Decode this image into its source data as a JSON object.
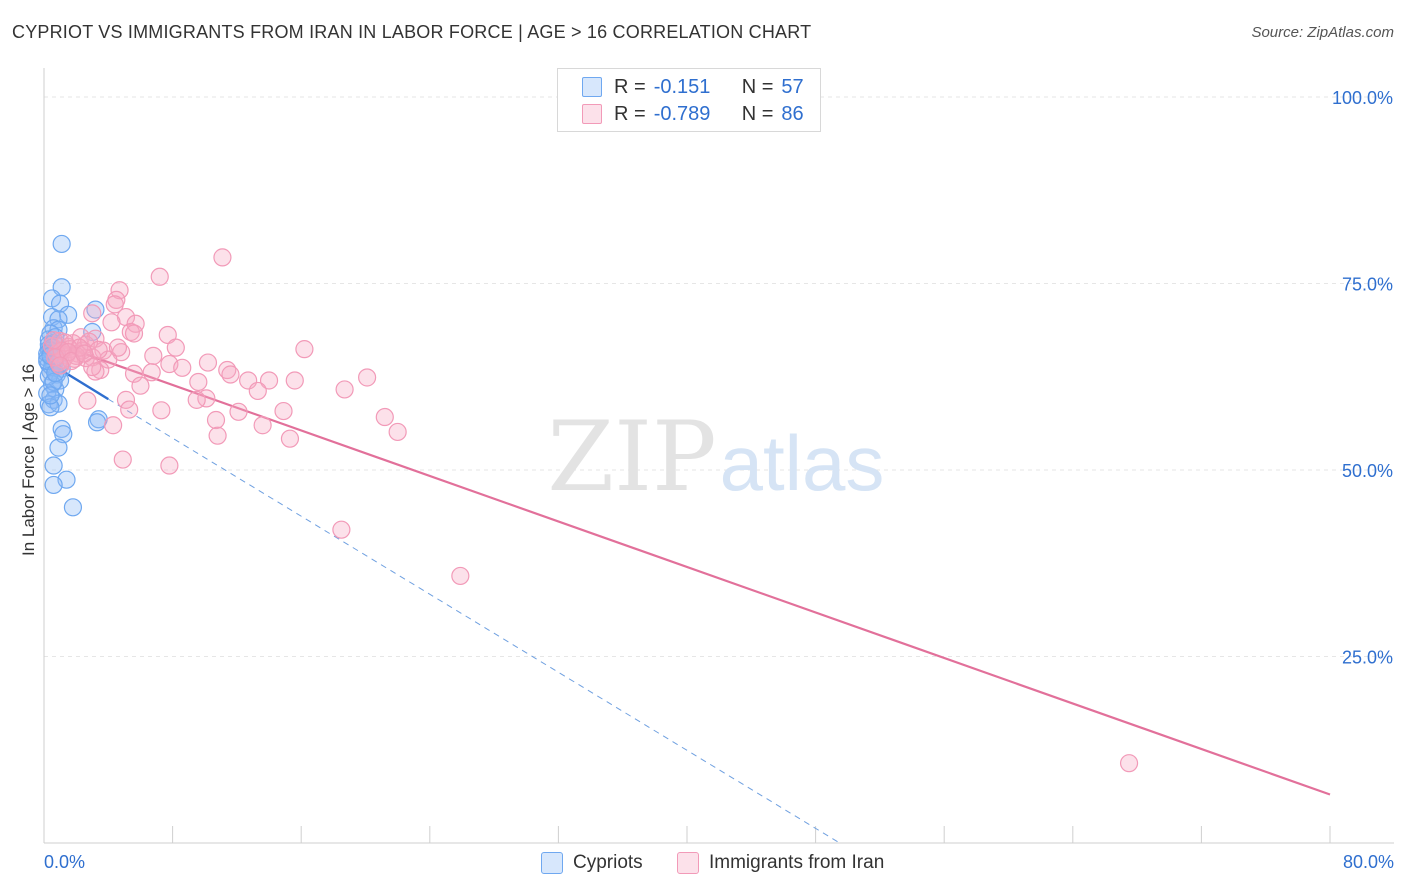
{
  "title": "CYPRIOT VS IMMIGRANTS FROM IRAN IN LABOR FORCE | AGE > 16 CORRELATION CHART",
  "source": "Source: ZipAtlas.com",
  "watermark": {
    "zip": "ZIP",
    "atlas": "atlas"
  },
  "legend": {
    "rows": [
      {
        "r_label": "R =",
        "r_value": "-0.151",
        "n_label": "N =",
        "n_value": "57",
        "color": "#6fa8f0"
      },
      {
        "r_label": "R =",
        "r_value": "-0.789",
        "n_label": "N =",
        "n_value": "86",
        "color": "#f29ab8"
      }
    ]
  },
  "bottom_legend": [
    "Cypriots",
    "Immigrants from Iran"
  ],
  "chart_data": {
    "type": "scatter",
    "xlabel": "",
    "ylabel": "In Labor Force | Age > 16",
    "xlim": [
      0,
      80
    ],
    "ylim": [
      0,
      100
    ],
    "x_tick_labels": [
      "0.0%",
      "80.0%"
    ],
    "y_tick_labels": [
      "100.0%",
      "75.0%",
      "50.0%",
      "25.0%"
    ],
    "y_ticks": [
      100,
      75,
      50,
      25
    ],
    "grid": true,
    "series": [
      {
        "name": "Cypriots",
        "color": "#6fa8f0",
        "points": [
          [
            1.1,
            80.3
          ],
          [
            1.1,
            74.5
          ],
          [
            0.5,
            73.0
          ],
          [
            1.0,
            72.3
          ],
          [
            0.5,
            70.5
          ],
          [
            1.5,
            70.8
          ],
          [
            0.9,
            70.2
          ],
          [
            0.6,
            69.0
          ],
          [
            0.9,
            68.8
          ],
          [
            0.4,
            68.3
          ],
          [
            0.3,
            67.5
          ],
          [
            0.6,
            67.0
          ],
          [
            0.8,
            66.6
          ],
          [
            0.3,
            66.2
          ],
          [
            0.5,
            65.8
          ],
          [
            0.7,
            65.5
          ],
          [
            0.2,
            65.0
          ],
          [
            0.5,
            64.8
          ],
          [
            0.9,
            64.6
          ],
          [
            0.3,
            64.2
          ],
          [
            0.6,
            64.0
          ],
          [
            1.1,
            63.6
          ],
          [
            0.4,
            63.2
          ],
          [
            0.8,
            62.8
          ],
          [
            1.0,
            62.0
          ],
          [
            0.5,
            61.5
          ],
          [
            0.7,
            60.8
          ],
          [
            0.2,
            60.3
          ],
          [
            0.6,
            59.4
          ],
          [
            0.3,
            58.8
          ],
          [
            0.9,
            58.9
          ],
          [
            0.4,
            58.4
          ],
          [
            3.2,
            71.5
          ],
          [
            3.0,
            68.5
          ],
          [
            3.4,
            56.8
          ],
          [
            3.3,
            56.4
          ],
          [
            1.1,
            55.5
          ],
          [
            1.2,
            54.8
          ],
          [
            0.9,
            53.0
          ],
          [
            0.6,
            50.6
          ],
          [
            1.4,
            48.7
          ],
          [
            0.6,
            48.0
          ],
          [
            1.8,
            45.0
          ],
          [
            0.3,
            66.8
          ],
          [
            0.7,
            67.8
          ],
          [
            0.4,
            66.0
          ],
          [
            0.2,
            65.6
          ],
          [
            0.5,
            63.8
          ],
          [
            0.8,
            65.2
          ],
          [
            0.3,
            62.6
          ],
          [
            0.6,
            61.8
          ],
          [
            0.4,
            60.0
          ],
          [
            0.9,
            64.0
          ],
          [
            0.2,
            64.6
          ],
          [
            0.5,
            66.4
          ],
          [
            0.7,
            63.0
          ],
          [
            0.4,
            65.3
          ]
        ],
        "trend": {
          "x0": 0,
          "y0": 64.8,
          "x1": 4.0,
          "y1": 59.5,
          "dash_x1": 49.5,
          "dash_y1": 0
        }
      },
      {
        "name": "Immigrants from Iran",
        "color": "#f29ab8",
        "points": [
          [
            11.1,
            78.5
          ],
          [
            7.2,
            75.9
          ],
          [
            4.7,
            74.1
          ],
          [
            4.5,
            72.8
          ],
          [
            4.4,
            72.2
          ],
          [
            3.0,
            71.0
          ],
          [
            5.1,
            70.5
          ],
          [
            4.2,
            69.8
          ],
          [
            5.7,
            69.6
          ],
          [
            5.4,
            68.5
          ],
          [
            5.6,
            68.3
          ],
          [
            7.7,
            68.1
          ],
          [
            2.3,
            67.8
          ],
          [
            3.2,
            67.6
          ],
          [
            1.0,
            67.3
          ],
          [
            1.8,
            67.0
          ],
          [
            2.6,
            66.8
          ],
          [
            1.5,
            66.5
          ],
          [
            8.2,
            66.4
          ],
          [
            16.2,
            66.2
          ],
          [
            3.7,
            66.0
          ],
          [
            4.8,
            65.8
          ],
          [
            2.1,
            65.6
          ],
          [
            1.4,
            65.4
          ],
          [
            6.8,
            65.3
          ],
          [
            3.0,
            65.1
          ],
          [
            2.6,
            65.0
          ],
          [
            1.2,
            64.8
          ],
          [
            4.0,
            64.8
          ],
          [
            10.2,
            64.4
          ],
          [
            7.8,
            64.2
          ],
          [
            8.6,
            63.7
          ],
          [
            11.4,
            63.4
          ],
          [
            3.5,
            63.4
          ],
          [
            3.2,
            63.2
          ],
          [
            6.7,
            63.1
          ],
          [
            5.6,
            62.9
          ],
          [
            11.6,
            62.8
          ],
          [
            20.1,
            62.4
          ],
          [
            14.0,
            62.0
          ],
          [
            12.7,
            62.0
          ],
          [
            15.6,
            62.0
          ],
          [
            9.6,
            61.8
          ],
          [
            6.0,
            61.3
          ],
          [
            13.3,
            60.6
          ],
          [
            18.7,
            60.8
          ],
          [
            10.1,
            59.6
          ],
          [
            5.1,
            59.4
          ],
          [
            9.5,
            59.4
          ],
          [
            2.7,
            59.3
          ],
          [
            5.3,
            58.1
          ],
          [
            7.3,
            58.0
          ],
          [
            12.1,
            57.8
          ],
          [
            14.9,
            57.9
          ],
          [
            21.2,
            57.1
          ],
          [
            10.7,
            56.7
          ],
          [
            4.3,
            56.0
          ],
          [
            13.6,
            56.0
          ],
          [
            22.0,
            55.1
          ],
          [
            10.8,
            54.6
          ],
          [
            15.3,
            54.2
          ],
          [
            4.9,
            51.4
          ],
          [
            7.8,
            50.6
          ],
          [
            18.5,
            42.0
          ],
          [
            25.9,
            35.8
          ],
          [
            67.5,
            10.7
          ],
          [
            1.6,
            66.2
          ],
          [
            2.4,
            66.0
          ],
          [
            0.8,
            65.6
          ],
          [
            1.9,
            64.9
          ],
          [
            0.5,
            66.6
          ],
          [
            2.0,
            65.3
          ],
          [
            1.3,
            67.1
          ],
          [
            2.8,
            67.2
          ],
          [
            3.4,
            66.1
          ],
          [
            0.9,
            64.4
          ],
          [
            1.1,
            66.0
          ],
          [
            2.2,
            66.4
          ],
          [
            0.7,
            65.1
          ],
          [
            1.5,
            65.8
          ],
          [
            3.0,
            63.8
          ],
          [
            4.6,
            66.4
          ],
          [
            0.6,
            67.4
          ],
          [
            1.7,
            64.6
          ],
          [
            2.5,
            65.6
          ],
          [
            1.0,
            64.0
          ]
        ],
        "trend": {
          "x0": 0,
          "y0": 67.5,
          "x1": 80,
          "y1": 6.5
        }
      }
    ]
  }
}
